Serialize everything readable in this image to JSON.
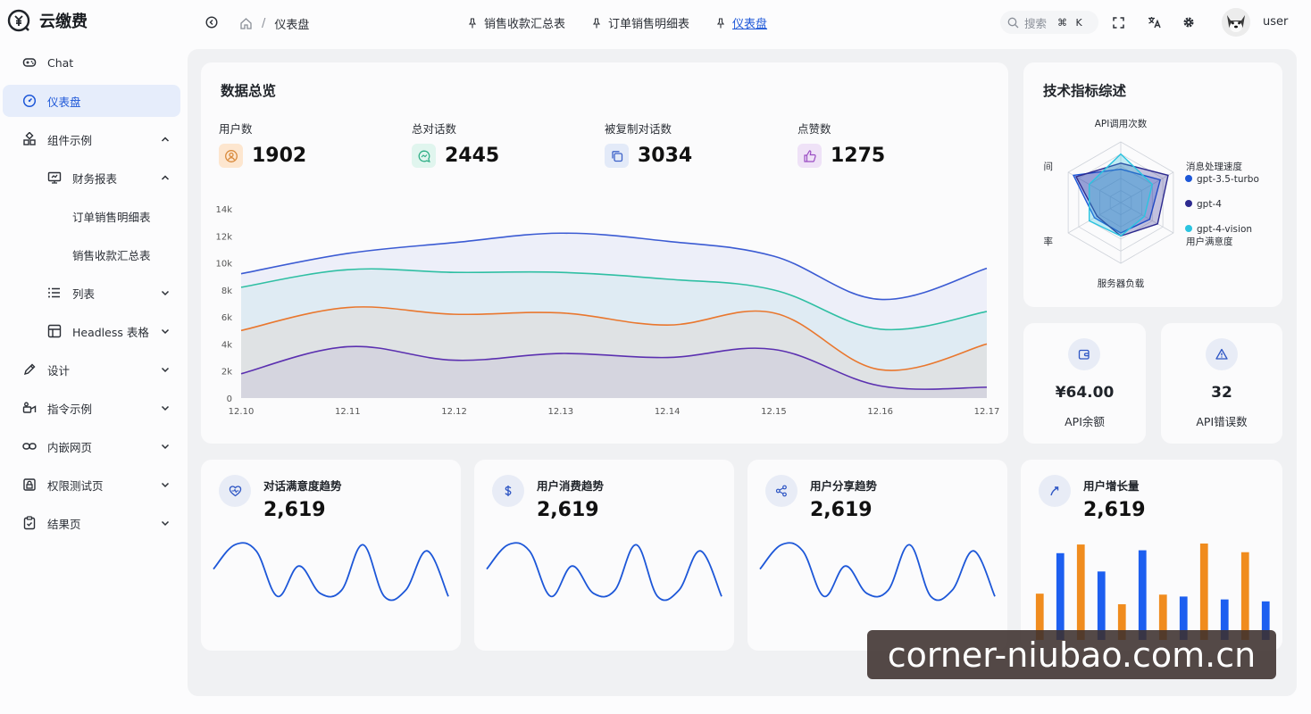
{
  "app": {
    "title": "云缴费"
  },
  "sidebar": {
    "items": [
      {
        "label": "Chat",
        "icon": "gamepad-icon"
      },
      {
        "label": "仪表盘",
        "icon": "gauge-icon",
        "active": true
      },
      {
        "label": "组件示例",
        "icon": "grid-icon"
      },
      {
        "label": "财务报表",
        "icon": "monitor-icon"
      },
      {
        "label": "订单销售明细表"
      },
      {
        "label": "销售收款汇总表"
      },
      {
        "label": "列表",
        "icon": "list-icon"
      },
      {
        "label": "Headless 表格",
        "icon": "table-icon"
      },
      {
        "label": "设计",
        "icon": "pen-icon"
      },
      {
        "label": "指令示例",
        "icon": "command-icon"
      },
      {
        "label": "内嵌网页",
        "icon": "link-icon"
      },
      {
        "label": "权限测试页",
        "icon": "lock-icon"
      },
      {
        "label": "结果页",
        "icon": "clipboard-icon"
      }
    ]
  },
  "header": {
    "breadcrumb": {
      "sep": "/",
      "current": "仪表盘"
    },
    "tabs": [
      "销售收款汇总表",
      "订单销售明细表",
      "仪表盘"
    ],
    "search": {
      "placeholder": "搜索",
      "shortcut": "⌘ K"
    },
    "user": "user"
  },
  "overview": {
    "title": "数据总览",
    "stats": [
      {
        "label": "用户数",
        "value": "1902"
      },
      {
        "label": "总对话数",
        "value": "2445"
      },
      {
        "label": "被复制对话数",
        "value": "3034"
      },
      {
        "label": "点赞数",
        "value": "1275"
      }
    ]
  },
  "chart_data": [
    {
      "type": "area",
      "x": [
        "12.10",
        "12.11",
        "12.12",
        "12.13",
        "12.14",
        "12.15",
        "12.16",
        "12.17"
      ],
      "y_ticks": [
        "0",
        "2k",
        "4k",
        "6k",
        "8k",
        "10k",
        "12k",
        "14k"
      ],
      "ylim": [
        0,
        14000
      ],
      "grid": false,
      "series": [
        {
          "color": "#3b5bd3",
          "values": [
            9200,
            10700,
            11500,
            12200,
            11600,
            10500,
            7300,
            9600
          ]
        },
        {
          "color": "#2fbfa3",
          "values": [
            8200,
            9500,
            9300,
            9300,
            8800,
            8000,
            5100,
            6400
          ]
        },
        {
          "color": "#e9772e",
          "values": [
            5000,
            6700,
            6200,
            6300,
            5400,
            6300,
            2100,
            4000
          ]
        },
        {
          "color": "#5b30b0",
          "values": [
            1800,
            3800,
            2800,
            3300,
            3000,
            3600,
            900,
            800
          ]
        }
      ]
    },
    {
      "type": "radar",
      "title": "技术指标综述",
      "indicators": [
        "API调用次数",
        "消息处理速度",
        "用户满意度",
        "服务器负载",
        "率",
        "间"
      ],
      "series": [
        {
          "name": "gpt-3.5-turbo",
          "color": "#1d57d8",
          "values": [
            0.55,
            0.75,
            0.55,
            0.5,
            0.5,
            0.9
          ]
        },
        {
          "name": "gpt-4",
          "color": "#2d2a8f",
          "values": [
            0.65,
            0.9,
            0.7,
            0.55,
            0.45,
            0.85
          ]
        },
        {
          "name": "gpt-4-vision",
          "color": "#2bc4e0",
          "values": [
            0.8,
            0.6,
            0.45,
            0.55,
            0.6,
            0.6
          ]
        }
      ]
    },
    {
      "type": "line",
      "values": [
        0.55,
        0.95,
        0.85,
        0.1,
        0.6,
        0.15,
        0.2,
        0.95,
        0.1,
        0.2,
        0.85,
        0.1
      ]
    },
    {
      "type": "line",
      "values": [
        0.55,
        0.95,
        0.85,
        0.1,
        0.6,
        0.15,
        0.2,
        0.95,
        0.1,
        0.2,
        0.85,
        0.1
      ]
    },
    {
      "type": "line",
      "values": [
        0.55,
        0.95,
        0.85,
        0.1,
        0.6,
        0.15,
        0.2,
        0.95,
        0.1,
        0.2,
        0.85,
        0.1
      ]
    },
    {
      "type": "bar",
      "colors": [
        "#f08c1e",
        "#1d5ff0"
      ],
      "values": [
        0.48,
        0.9,
        0.99,
        0.71,
        0.37,
        0.93,
        0.47,
        0.45,
        1.0,
        0.42,
        0.91,
        0.4
      ]
    }
  ],
  "mini_cards": [
    {
      "value": "¥64.00",
      "label": "API余额"
    },
    {
      "value": "32",
      "label": "API错误数"
    }
  ],
  "trends": [
    {
      "title": "对话满意度趋势",
      "value": "2,619"
    },
    {
      "title": "用户消费趋势",
      "value": "2,619"
    },
    {
      "title": "用户分享趋势",
      "value": "2,619"
    },
    {
      "title": "用户增长量",
      "value": "2,619"
    }
  ],
  "watermark": "corner-niubao.com.cn"
}
